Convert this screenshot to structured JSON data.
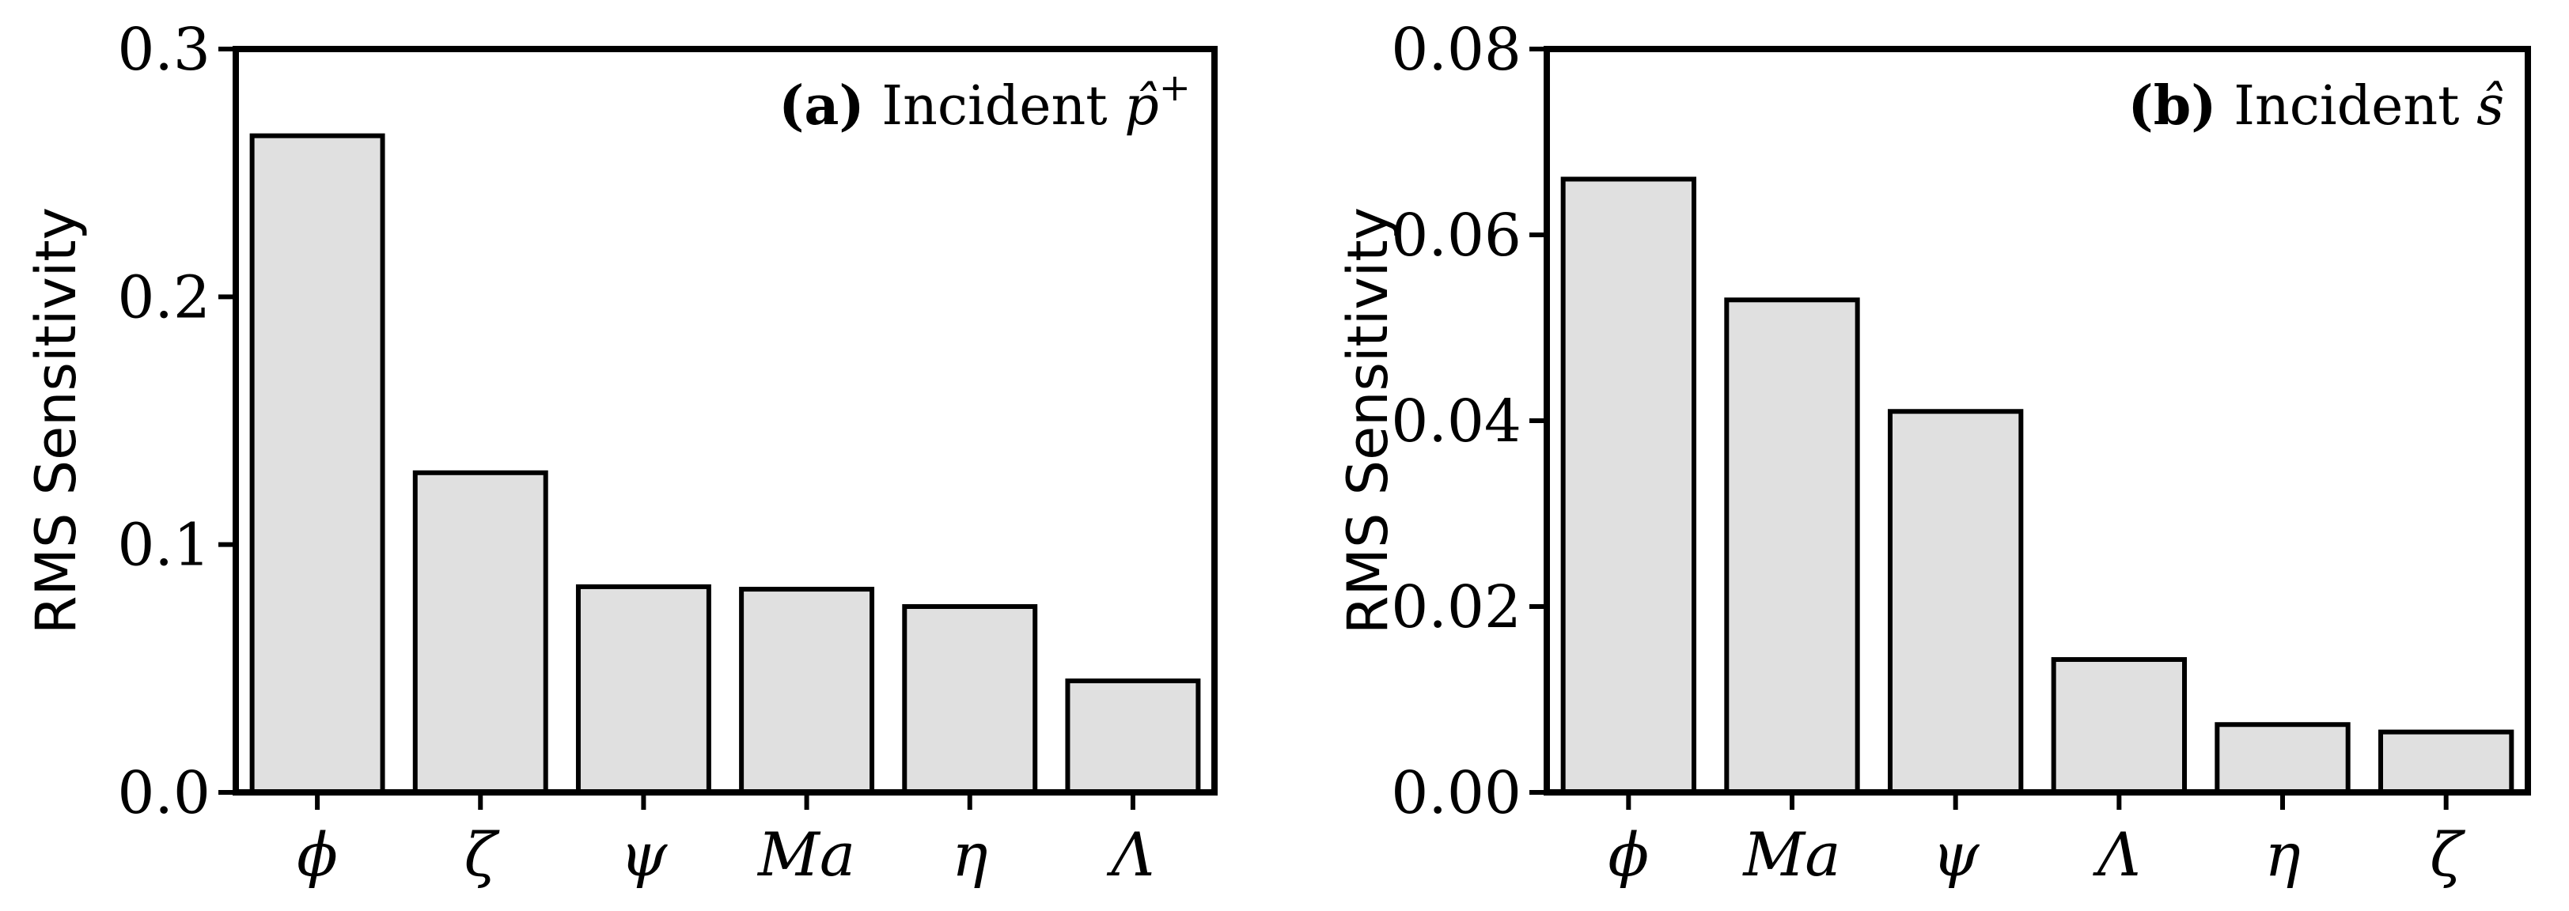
{
  "chart_data": [
    {
      "type": "bar",
      "panel": "(a)",
      "annotation": {
        "label": "(a)",
        "text": "Incident",
        "symbol": "p̂",
        "superscript": "+"
      },
      "ylabel": "RMS Sensitivity",
      "categories": [
        "ϕ",
        "ζ",
        "ψ",
        "Ma",
        "η",
        "Λ"
      ],
      "values": [
        0.265,
        0.129,
        0.083,
        0.082,
        0.075,
        0.045
      ],
      "ylim": [
        0,
        0.3
      ],
      "yticks": [
        "0.0",
        "0.1",
        "0.2",
        "0.3"
      ],
      "ytick_values": [
        0,
        0.1,
        0.2,
        0.3
      ],
      "bar_color": "#e0e0e0",
      "edge_color": "#000000",
      "grid": false
    },
    {
      "type": "bar",
      "panel": "(b)",
      "annotation": {
        "label": "(b)",
        "text": "Incident",
        "symbol": "ŝ",
        "superscript": ""
      },
      "ylabel": "RMS Sensitivity",
      "categories": [
        "ϕ",
        "Ma",
        "ψ",
        "Λ",
        "η",
        "ζ"
      ],
      "values": [
        0.066,
        0.053,
        0.041,
        0.0143,
        0.0073,
        0.0065
      ],
      "ylim": [
        0,
        0.08
      ],
      "yticks": [
        "0.00",
        "0.02",
        "0.04",
        "0.06",
        "0.08"
      ],
      "ytick_values": [
        0,
        0.02,
        0.04,
        0.06,
        0.08
      ],
      "bar_color": "#e0e0e0",
      "edge_color": "#000000",
      "grid": false
    }
  ]
}
